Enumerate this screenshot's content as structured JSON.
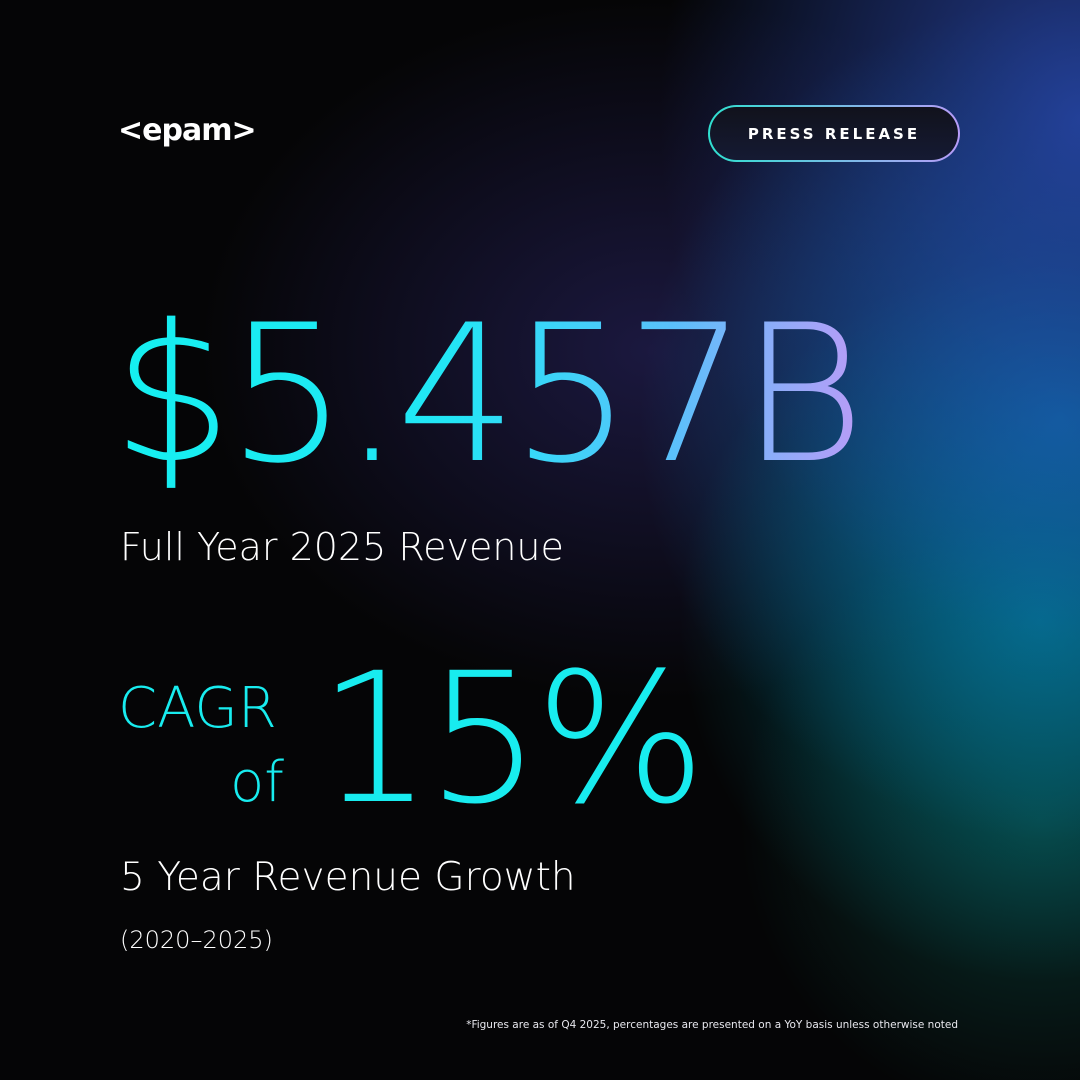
{
  "logo": "<epam>",
  "badge": "PRESS RELEASE",
  "revenue": {
    "value": "$5.457B",
    "label": "Full Year 2025 Revenue"
  },
  "growth": {
    "prefix_line1": "CAGR",
    "prefix_line2": "of",
    "value": "15%",
    "label": "5 Year Revenue Growth",
    "period": "(2020–2025)"
  },
  "footnote": "*Figures are as of Q4 2025, percentages are presented on a YoY basis unless otherwise noted"
}
